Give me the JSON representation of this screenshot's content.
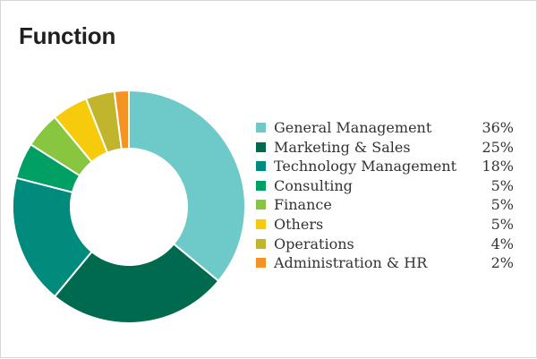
{
  "title": "Function",
  "chart_data": {
    "type": "pie",
    "title": "Function",
    "legend_position": "right",
    "slices": [
      {
        "label": "General Management",
        "value": 36,
        "pct_label": "36%",
        "color": "#6ecac8"
      },
      {
        "label": "Marketing & Sales",
        "value": 25,
        "pct_label": "25%",
        "color": "#006a4e"
      },
      {
        "label": "Technology Management",
        "value": 18,
        "pct_label": "18%",
        "color": "#008b7c"
      },
      {
        "label": "Consulting",
        "value": 5,
        "pct_label": "5%",
        "color": "#00a064"
      },
      {
        "label": "Finance",
        "value": 5,
        "pct_label": "5%",
        "color": "#88c640"
      },
      {
        "label": "Others",
        "value": 5,
        "pct_label": "5%",
        "color": "#f5cb0c"
      },
      {
        "label": "Operations",
        "value": 4,
        "pct_label": "4%",
        "color": "#c2b52e"
      },
      {
        "label": "Administration & HR",
        "value": 2,
        "pct_label": "2%",
        "color": "#f39422"
      }
    ]
  }
}
